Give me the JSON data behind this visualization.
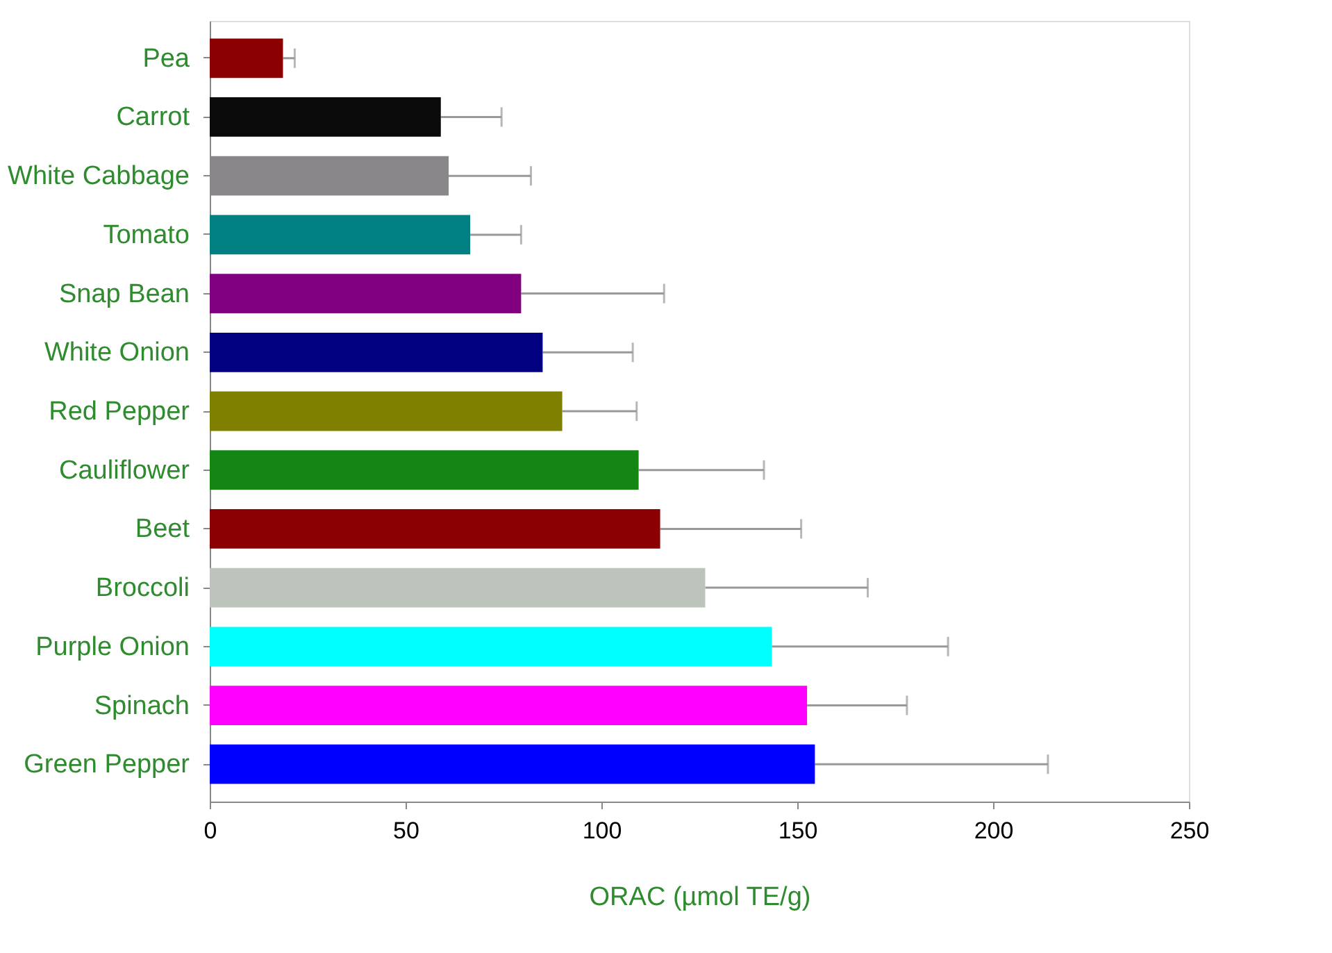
{
  "chart_data": {
    "type": "bar",
    "orientation": "horizontal",
    "xlabel": "ORAC (µmol TE/g)",
    "categories": [
      "Pea",
      "Carrot",
      "White Cabbage",
      "Tomato",
      "Snap Bean",
      "White Onion",
      "Red Pepper",
      "Cauliflower",
      "Beet",
      "Broccoli",
      "Purple Onion",
      "Spinach",
      "Green Pepper"
    ],
    "values": [
      18.7,
      59,
      61,
      66.5,
      79.5,
      85,
      90,
      109.5,
      115,
      126.5,
      143.5,
      152.5,
      154.5
    ],
    "errors": [
      [
        18.7,
        21.7
      ],
      [
        59,
        74.5
      ],
      [
        61,
        82
      ],
      [
        66.5,
        79.5
      ],
      [
        79.5,
        116
      ],
      [
        85,
        108
      ],
      [
        90,
        109
      ],
      [
        109.5,
        141.5
      ],
      [
        115,
        151
      ],
      [
        126.5,
        168
      ],
      [
        143.5,
        188.5
      ],
      [
        152.5,
        178
      ],
      [
        154.5,
        214
      ]
    ],
    "colors": [
      "#8b0000",
      "#0a0a0a",
      "#8a878a",
      "#008080",
      "#800080",
      "#000080",
      "#808000",
      "#138613",
      "#8b0000",
      "#bcc4bc",
      "#00ffff",
      "#ff00ff",
      "#0000ff"
    ],
    "xlim": [
      0,
      250
    ],
    "xticks": [
      0,
      50,
      100,
      150,
      200,
      250
    ],
    "grid": false
  }
}
